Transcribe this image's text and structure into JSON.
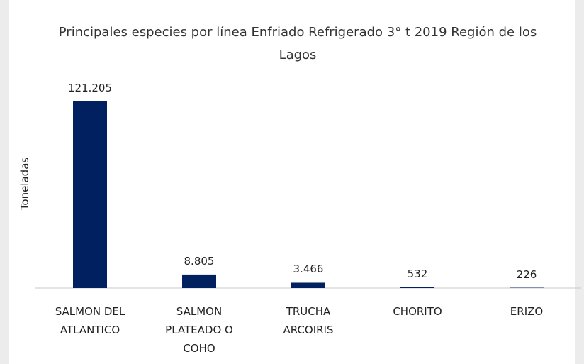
{
  "chart_data": {
    "type": "bar",
    "title": "Principales especies por línea Enfriado Refrigerado 3° t 2019 Región de los Lagos",
    "y_label": "Toneladas",
    "categories": [
      "SALMON DEL ATLANTICO",
      "SALMON PLATEADO O COHO",
      "TRUCHA ARCOIRIS",
      "CHORITO",
      "ERIZO"
    ],
    "values": [
      121205,
      8805,
      3466,
      532,
      226
    ],
    "value_labels": [
      "121.205",
      "8.805",
      "3.466",
      "532",
      "226"
    ],
    "color": "#002060"
  }
}
